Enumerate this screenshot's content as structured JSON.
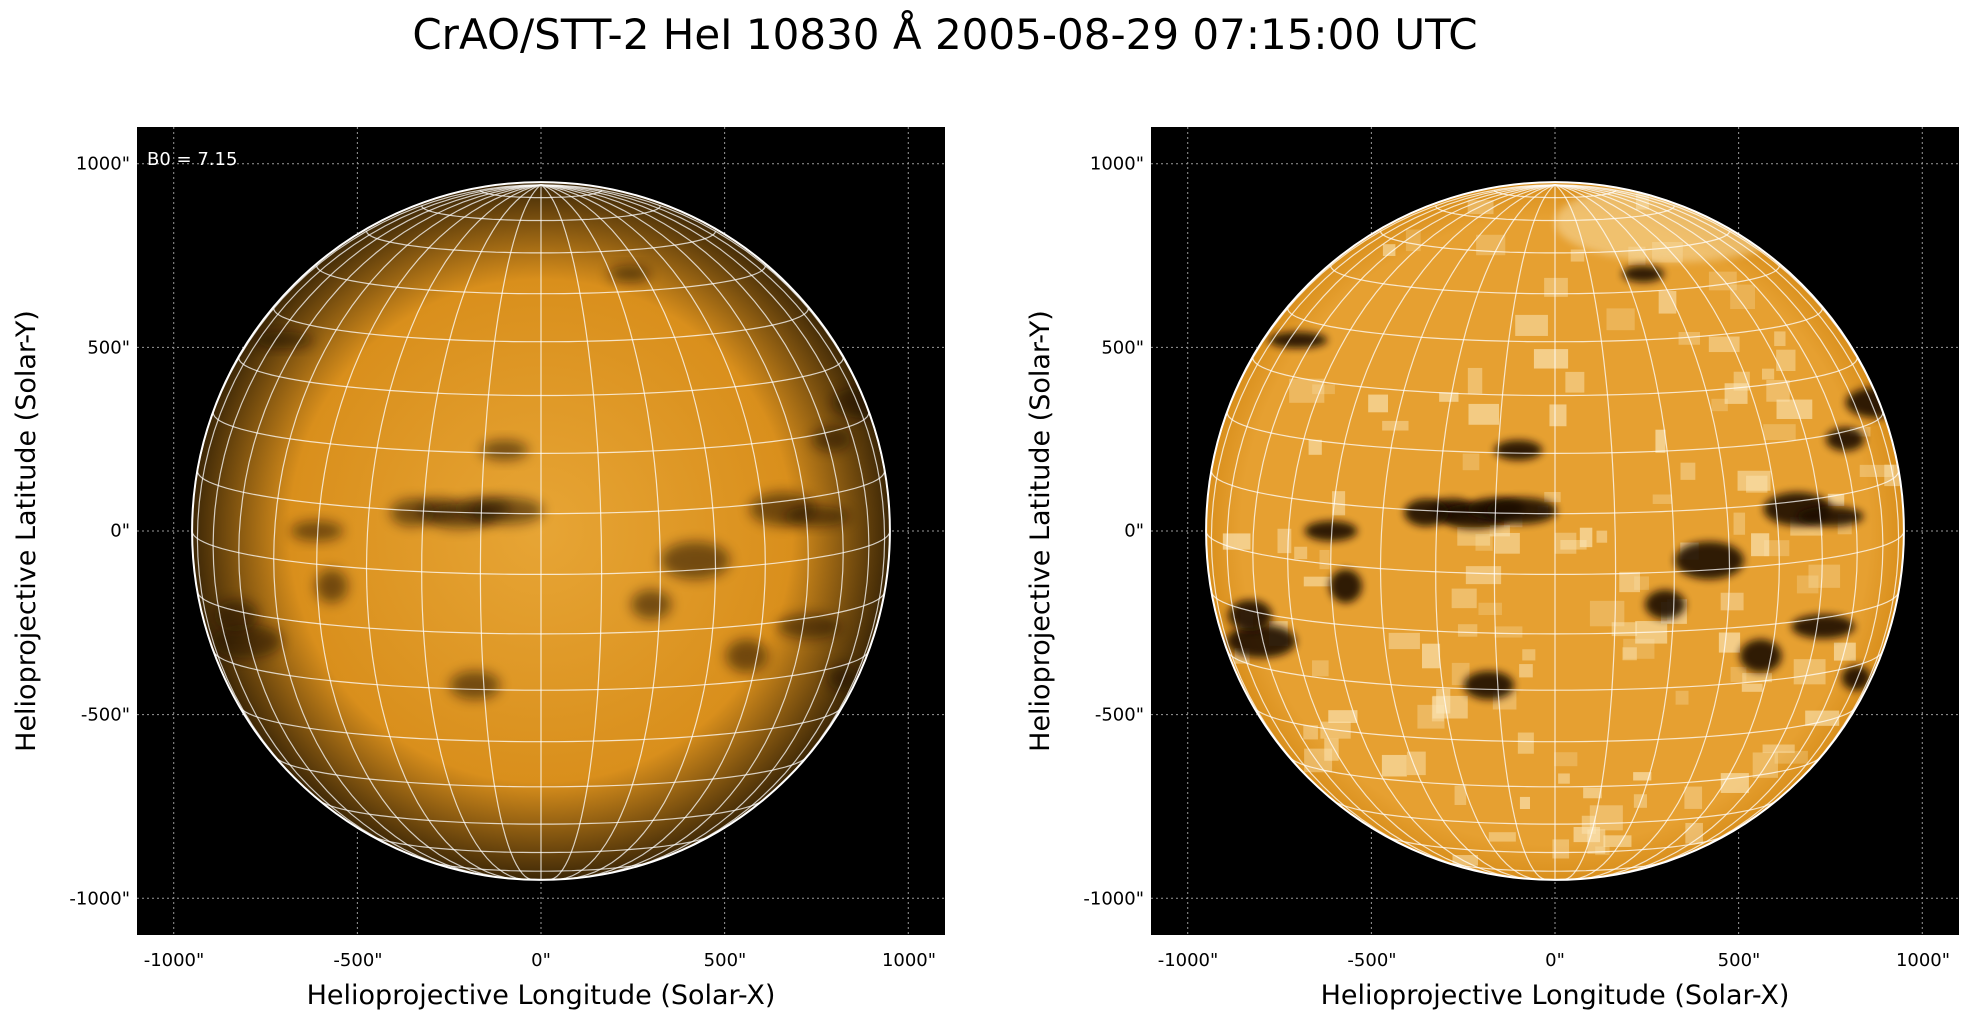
{
  "figure": {
    "title": "CrAO/STT-2 HeI 10830 Å 2005-08-29 07:15:00 UTC"
  },
  "panels": [
    {
      "xlabel": "Helioprojective Longitude (Solar-X)",
      "ylabel": "Helioprojective Latitude (Solar-Y)",
      "xticks": [
        "-1000\"",
        "-500\"",
        "0\"",
        "500\"",
        "1000\""
      ],
      "yticks": [
        "1000\"",
        "500\"",
        "0\"",
        "-500\"",
        "-1000\""
      ],
      "annotation": "B0 = 7.15",
      "style": "smooth"
    },
    {
      "xlabel": "Helioprojective Longitude (Solar-X)",
      "ylabel": "Helioprojective Latitude (Solar-Y)",
      "xticks": [
        "-1000\"",
        "-500\"",
        "0\"",
        "500\"",
        "1000\""
      ],
      "yticks": [
        "1000\"",
        "500\"",
        "0\"",
        "-500\"",
        "-1000\""
      ],
      "style": "enhanced"
    }
  ],
  "image": {
    "axis_range_arcsec": [
      -1100,
      1100
    ],
    "tick_values_arcsec": [
      -1000,
      -500,
      0,
      500,
      1000
    ],
    "solar_radius_arcsec": 950,
    "b0_degrees": 7.15,
    "grid_step_degrees": 10,
    "colors": {
      "disk": "#d98f1c",
      "disk_center": "#e7a535",
      "limb_dark": "#3d2706",
      "enhanced_disk": "#e6a031",
      "enhanced_bright": "#fce8bb",
      "filament": "#1f1103",
      "background": "#000000",
      "grid": "#ffffff",
      "frame_grid": "#9a9a9a"
    },
    "dark_features": [
      {
        "x": -280,
        "y": 60
      },
      {
        "x": -220,
        "y": 40
      },
      {
        "x": -160,
        "y": 60
      },
      {
        "x": -90,
        "y": 55
      },
      {
        "x": -350,
        "y": 50
      },
      {
        "x": -800,
        "y": -300
      },
      {
        "x": -830,
        "y": -230
      },
      {
        "x": -700,
        "y": 520
      },
      {
        "x": 660,
        "y": 60
      },
      {
        "x": 750,
        "y": 40
      },
      {
        "x": 790,
        "y": 250
      },
      {
        "x": 880,
        "y": 350
      },
      {
        "x": 730,
        "y": -260
      },
      {
        "x": 560,
        "y": -340
      },
      {
        "x": -570,
        "y": -150
      },
      {
        "x": -180,
        "y": -420
      },
      {
        "x": 300,
        "y": -200
      },
      {
        "x": 820,
        "y": -400
      },
      {
        "x": 240,
        "y": 700
      },
      {
        "x": -100,
        "y": 220
      },
      {
        "x": 420,
        "y": -80
      },
      {
        "x": -610,
        "y": 0
      }
    ]
  }
}
